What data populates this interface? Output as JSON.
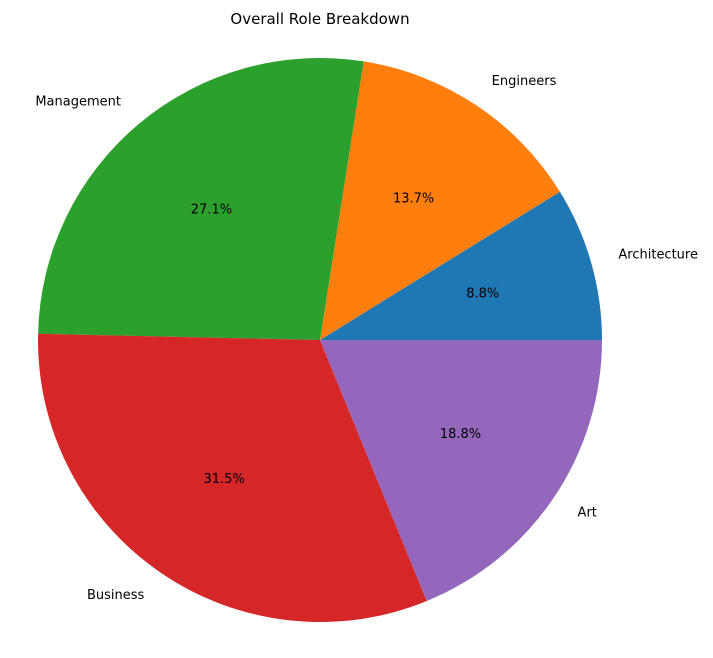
{
  "chart_data": {
    "type": "pie",
    "title": "Overall Role Breakdown",
    "slices": [
      {
        "label": "Architecture",
        "value": 8.8,
        "pct_label": "8.8%",
        "color": "#1f77b4"
      },
      {
        "label": "Engineers",
        "value": 13.7,
        "pct_label": "13.7%",
        "color": "#ff7f0e"
      },
      {
        "label": "Management",
        "value": 27.1,
        "pct_label": "27.1%",
        "color": "#2ca02c"
      },
      {
        "label": "Business",
        "value": 31.5,
        "pct_label": "31.5%",
        "color": "#d62728"
      },
      {
        "label": "Art",
        "value": 18.8,
        "pct_label": "18.8%",
        "color": "#9467bd"
      }
    ],
    "start_angle_deg": 0,
    "direction": "counterclockwise"
  }
}
